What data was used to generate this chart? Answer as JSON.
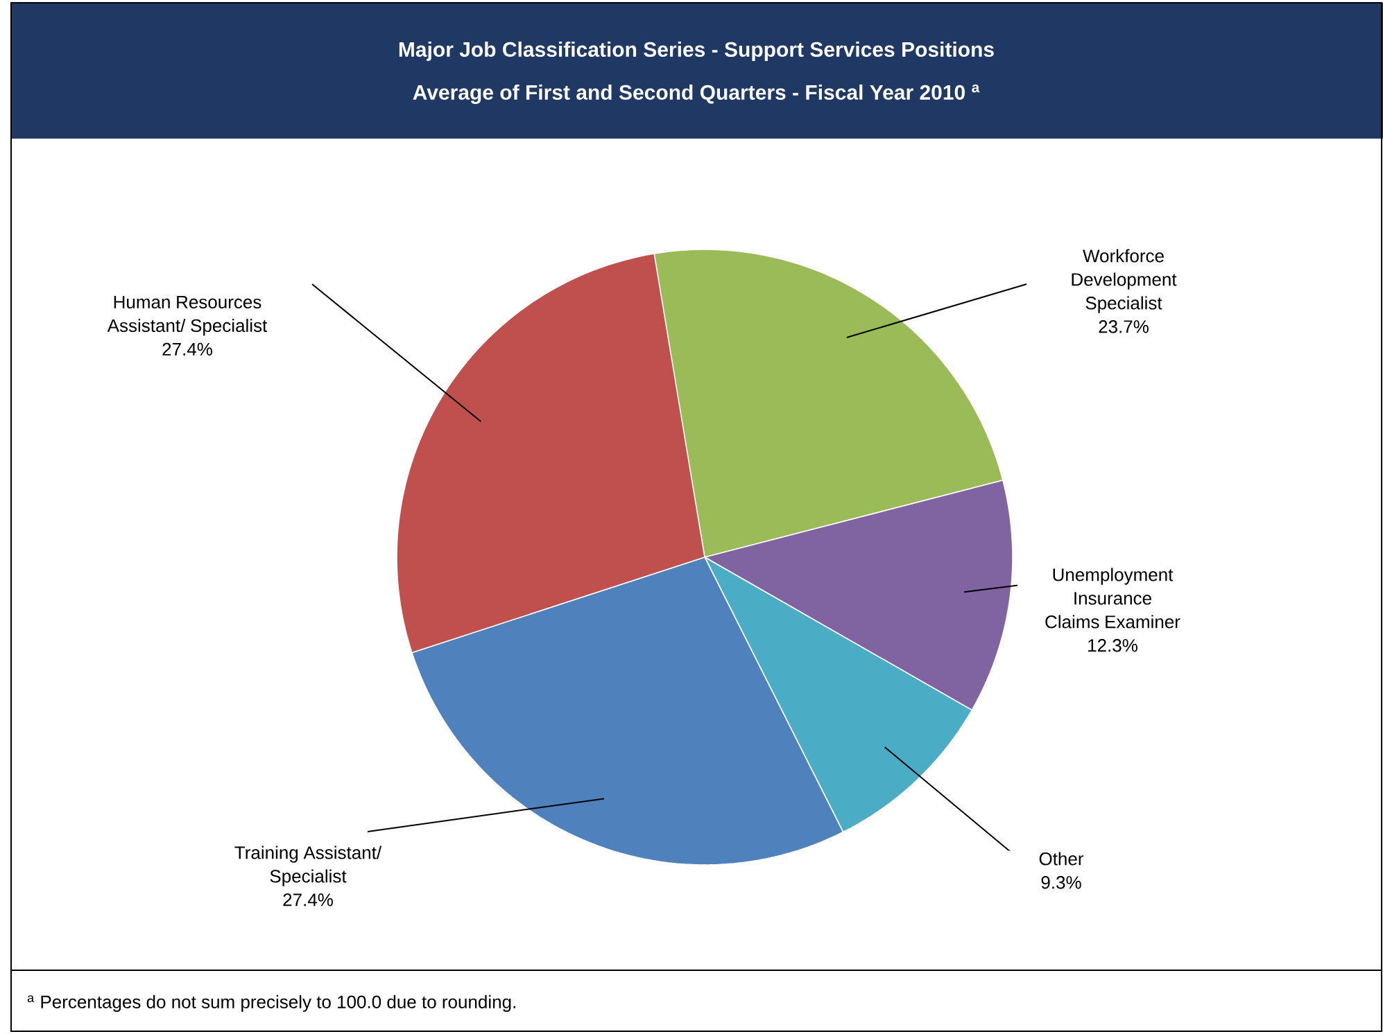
{
  "chart_data": {
    "type": "pie",
    "title": "Major Job Classification Series - Support Services Positions",
    "subtitle": "Average of First and Second Quarters - Fiscal Year 2010 $^{a}$",
    "categories": [
      "Workforce Development Specialist",
      "Unemployment Insurance Claims Examiner",
      "Other",
      "Training Assistant/ Specialist",
      "Human Resources Assistant/ Specialist"
    ],
    "values": [
      23.7,
      12.3,
      9.3,
      27.4,
      27.4
    ],
    "value_labels": [
      "23.7%",
      "12.3%",
      "9.3%",
      "27.4%",
      "27.4%"
    ],
    "colors": [
      "#9bbb59",
      "#8064a2",
      "#4bacc6",
      "#4f81bd",
      "#c0504d"
    ],
    "annotations": [
      "$^{a}$ Percentages do not sum precisely to 100.0 due to rounding."
    ]
  }
}
